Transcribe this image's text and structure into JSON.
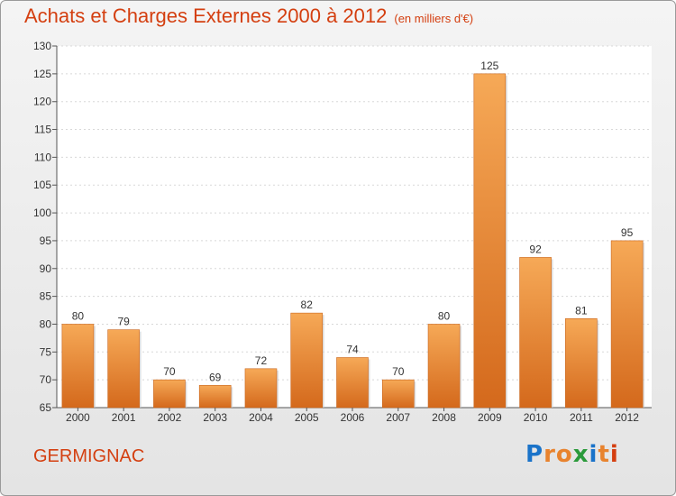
{
  "chart_data": {
    "type": "bar",
    "title": "Achats et Charges Externes 2000 à 2012",
    "subtitle": "(en milliers d'€)",
    "categories": [
      "2000",
      "2001",
      "2002",
      "2003",
      "2004",
      "2005",
      "2006",
      "2007",
      "2008",
      "2009",
      "2010",
      "2011",
      "2012"
    ],
    "values": [
      80,
      79,
      70,
      69,
      72,
      82,
      74,
      70,
      80,
      125,
      92,
      81,
      95
    ],
    "ylim": [
      65,
      130
    ],
    "yticks": [
      65,
      70,
      75,
      80,
      85,
      90,
      95,
      100,
      105,
      110,
      115,
      120,
      125,
      130
    ],
    "grid": true,
    "bar_color": "#e8832e",
    "title_color": "#d43f10"
  },
  "footer": {
    "town": "GERMIGNAC",
    "logo": {
      "letters": [
        "P",
        "r",
        "o",
        "x",
        "i",
        "t",
        "i"
      ],
      "colors": [
        "#1a73c9",
        "#e8832e",
        "#e8832e",
        "#2a9a3a",
        "#1a73c9",
        "#e8832e",
        "#d43f10"
      ]
    }
  }
}
